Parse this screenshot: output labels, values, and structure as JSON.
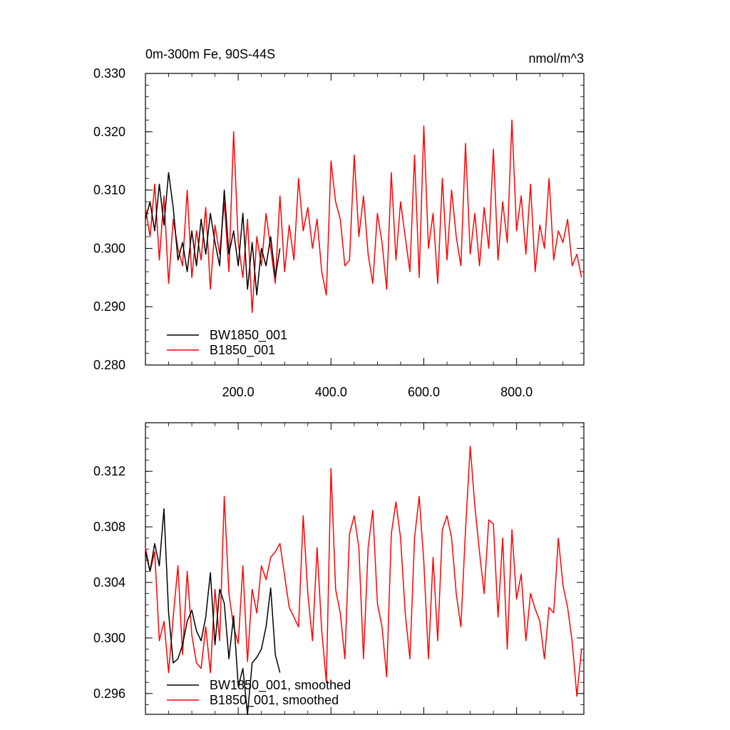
{
  "chart_data": [
    {
      "type": "line",
      "title_left": "0m-300m Fe, 90S-44S",
      "title_right": "nmol/m^3",
      "xlim": [
        0,
        945
      ],
      "ylim": [
        0.28,
        0.33
      ],
      "x_ticks": [
        200,
        400,
        600,
        800
      ],
      "x_tick_labels": [
        "200.0",
        "400.0",
        "600.0",
        "800.0"
      ],
      "y_ticks": [
        0.28,
        0.29,
        0.3,
        0.31,
        0.32,
        0.33
      ],
      "y_tick_labels": [
        "0.280",
        "0.290",
        "0.300",
        "0.310",
        "0.320",
        "0.330"
      ],
      "legend_position": "bottom-left",
      "series": [
        {
          "name": "BW1850_001",
          "color": "#000000",
          "x": [
            0,
            10,
            20,
            30,
            40,
            50,
            60,
            70,
            80,
            90,
            100,
            110,
            120,
            130,
            140,
            150,
            160,
            170,
            180,
            190,
            200,
            210,
            220,
            230,
            240,
            250,
            260,
            270,
            280,
            290
          ],
          "y": [
            0.305,
            0.308,
            0.303,
            0.311,
            0.304,
            0.313,
            0.307,
            0.298,
            0.301,
            0.296,
            0.303,
            0.297,
            0.305,
            0.299,
            0.306,
            0.301,
            0.297,
            0.31,
            0.299,
            0.303,
            0.297,
            0.306,
            0.293,
            0.301,
            0.292,
            0.3,
            0.297,
            0.302,
            0.295,
            0.3
          ]
        },
        {
          "name": "B1850_001",
          "color": "#ff0000",
          "x": [
            0,
            10,
            20,
            30,
            40,
            50,
            60,
            70,
            80,
            90,
            100,
            110,
            120,
            130,
            140,
            150,
            160,
            170,
            180,
            190,
            200,
            210,
            220,
            230,
            240,
            250,
            260,
            270,
            280,
            290,
            300,
            310,
            320,
            330,
            340,
            350,
            360,
            370,
            380,
            390,
            400,
            410,
            420,
            430,
            440,
            450,
            460,
            470,
            480,
            490,
            500,
            510,
            520,
            530,
            540,
            550,
            560,
            570,
            580,
            590,
            600,
            610,
            620,
            630,
            640,
            650,
            660,
            670,
            680,
            690,
            700,
            710,
            720,
            730,
            740,
            750,
            760,
            770,
            780,
            790,
            800,
            810,
            820,
            830,
            840,
            850,
            860,
            870,
            880,
            890,
            900,
            910,
            920,
            930,
            940
          ],
          "y": [
            0.307,
            0.302,
            0.311,
            0.298,
            0.309,
            0.294,
            0.305,
            0.3,
            0.297,
            0.31,
            0.295,
            0.303,
            0.298,
            0.307,
            0.293,
            0.304,
            0.299,
            0.308,
            0.296,
            0.32,
            0.301,
            0.295,
            0.305,
            0.289,
            0.302,
            0.297,
            0.306,
            0.3,
            0.294,
            0.309,
            0.296,
            0.304,
            0.298,
            0.312,
            0.303,
            0.307,
            0.3,
            0.305,
            0.296,
            0.292,
            0.315,
            0.308,
            0.305,
            0.297,
            0.298,
            0.316,
            0.302,
            0.309,
            0.299,
            0.294,
            0.306,
            0.301,
            0.293,
            0.313,
            0.298,
            0.308,
            0.302,
            0.296,
            0.316,
            0.295,
            0.321,
            0.3,
            0.306,
            0.294,
            0.312,
            0.298,
            0.31,
            0.302,
            0.297,
            0.318,
            0.299,
            0.306,
            0.297,
            0.307,
            0.3,
            0.317,
            0.298,
            0.308,
            0.301,
            0.322,
            0.303,
            0.309,
            0.299,
            0.311,
            0.296,
            0.304,
            0.3,
            0.312,
            0.298,
            0.303,
            0.301,
            0.305,
            0.297,
            0.299,
            0.295
          ]
        }
      ]
    },
    {
      "type": "line",
      "xlim": [
        0,
        945
      ],
      "ylim": [
        0.2945,
        0.3155
      ],
      "x_ticks": [
        200,
        400,
        600,
        800
      ],
      "y_ticks": [
        0.296,
        0.3,
        0.304,
        0.308,
        0.312
      ],
      "y_tick_labels": [
        "0.296",
        "0.300",
        "0.304",
        "0.308",
        "0.312"
      ],
      "legend_position": "bottom-left",
      "series": [
        {
          "name": "BW1850_001, smoothed",
          "color": "#000000",
          "x": [
            0,
            10,
            20,
            30,
            40,
            50,
            60,
            70,
            80,
            90,
            100,
            110,
            120,
            130,
            140,
            150,
            160,
            170,
            180,
            190,
            200,
            210,
            220,
            230,
            240,
            250,
            260,
            270,
            280,
            290
          ],
          "y": [
            0.3062,
            0.3048,
            0.3068,
            0.3052,
            0.3093,
            0.3018,
            0.2982,
            0.2985,
            0.2995,
            0.3012,
            0.302,
            0.3005,
            0.2998,
            0.3015,
            0.3047,
            0.2995,
            0.3035,
            0.3025,
            0.2985,
            0.3016,
            0.2965,
            0.2978,
            0.2945,
            0.2982,
            0.2986,
            0.2992,
            0.3008,
            0.3036,
            0.2988,
            0.2975
          ]
        },
        {
          "name": "B1850_001, smoothed",
          "color": "#ff0000",
          "x": [
            0,
            10,
            20,
            30,
            40,
            50,
            60,
            70,
            80,
            90,
            100,
            110,
            120,
            130,
            140,
            150,
            160,
            170,
            180,
            190,
            200,
            210,
            220,
            230,
            240,
            250,
            260,
            270,
            280,
            290,
            300,
            310,
            320,
            330,
            340,
            350,
            360,
            370,
            380,
            390,
            400,
            410,
            420,
            430,
            440,
            450,
            460,
            470,
            480,
            490,
            500,
            510,
            520,
            530,
            540,
            550,
            560,
            570,
            580,
            590,
            600,
            610,
            620,
            630,
            640,
            650,
            660,
            670,
            680,
            690,
            700,
            710,
            720,
            730,
            740,
            750,
            760,
            770,
            780,
            790,
            800,
            810,
            820,
            830,
            840,
            850,
            860,
            870,
            880,
            890,
            900,
            910,
            920,
            930,
            940
          ],
          "y": [
            0.3065,
            0.3048,
            0.3062,
            0.2998,
            0.3012,
            0.2975,
            0.3015,
            0.3052,
            0.2988,
            0.3048,
            0.3002,
            0.2982,
            0.2978,
            0.3008,
            0.2975,
            0.3035,
            0.2998,
            0.3102,
            0.3032,
            0.3008,
            0.2996,
            0.3052,
            0.2983,
            0.3035,
            0.3018,
            0.3052,
            0.3042,
            0.3058,
            0.3062,
            0.3068,
            0.3045,
            0.3022,
            0.3015,
            0.3008,
            0.3088,
            0.3032,
            0.2998,
            0.3065,
            0.3005,
            0.2968,
            0.3122,
            0.3035,
            0.3018,
            0.2985,
            0.3075,
            0.3088,
            0.3065,
            0.2985,
            0.3065,
            0.3092,
            0.3025,
            0.3008,
            0.2972,
            0.3075,
            0.3098,
            0.3072,
            0.3018,
            0.2985,
            0.3072,
            0.3102,
            0.3055,
            0.2985,
            0.3058,
            0.2998,
            0.3078,
            0.3088,
            0.3072,
            0.3032,
            0.3008,
            0.3078,
            0.3138,
            0.3095,
            0.3062,
            0.3032,
            0.3085,
            0.3082,
            0.3015,
            0.3072,
            0.2992,
            0.3078,
            0.3028,
            0.3046,
            0.2998,
            0.3032,
            0.3021,
            0.3012,
            0.2985,
            0.3022,
            0.3018,
            0.3072,
            0.3038,
            0.3022,
            0.2997,
            0.2958,
            0.2992
          ]
        }
      ]
    }
  ]
}
